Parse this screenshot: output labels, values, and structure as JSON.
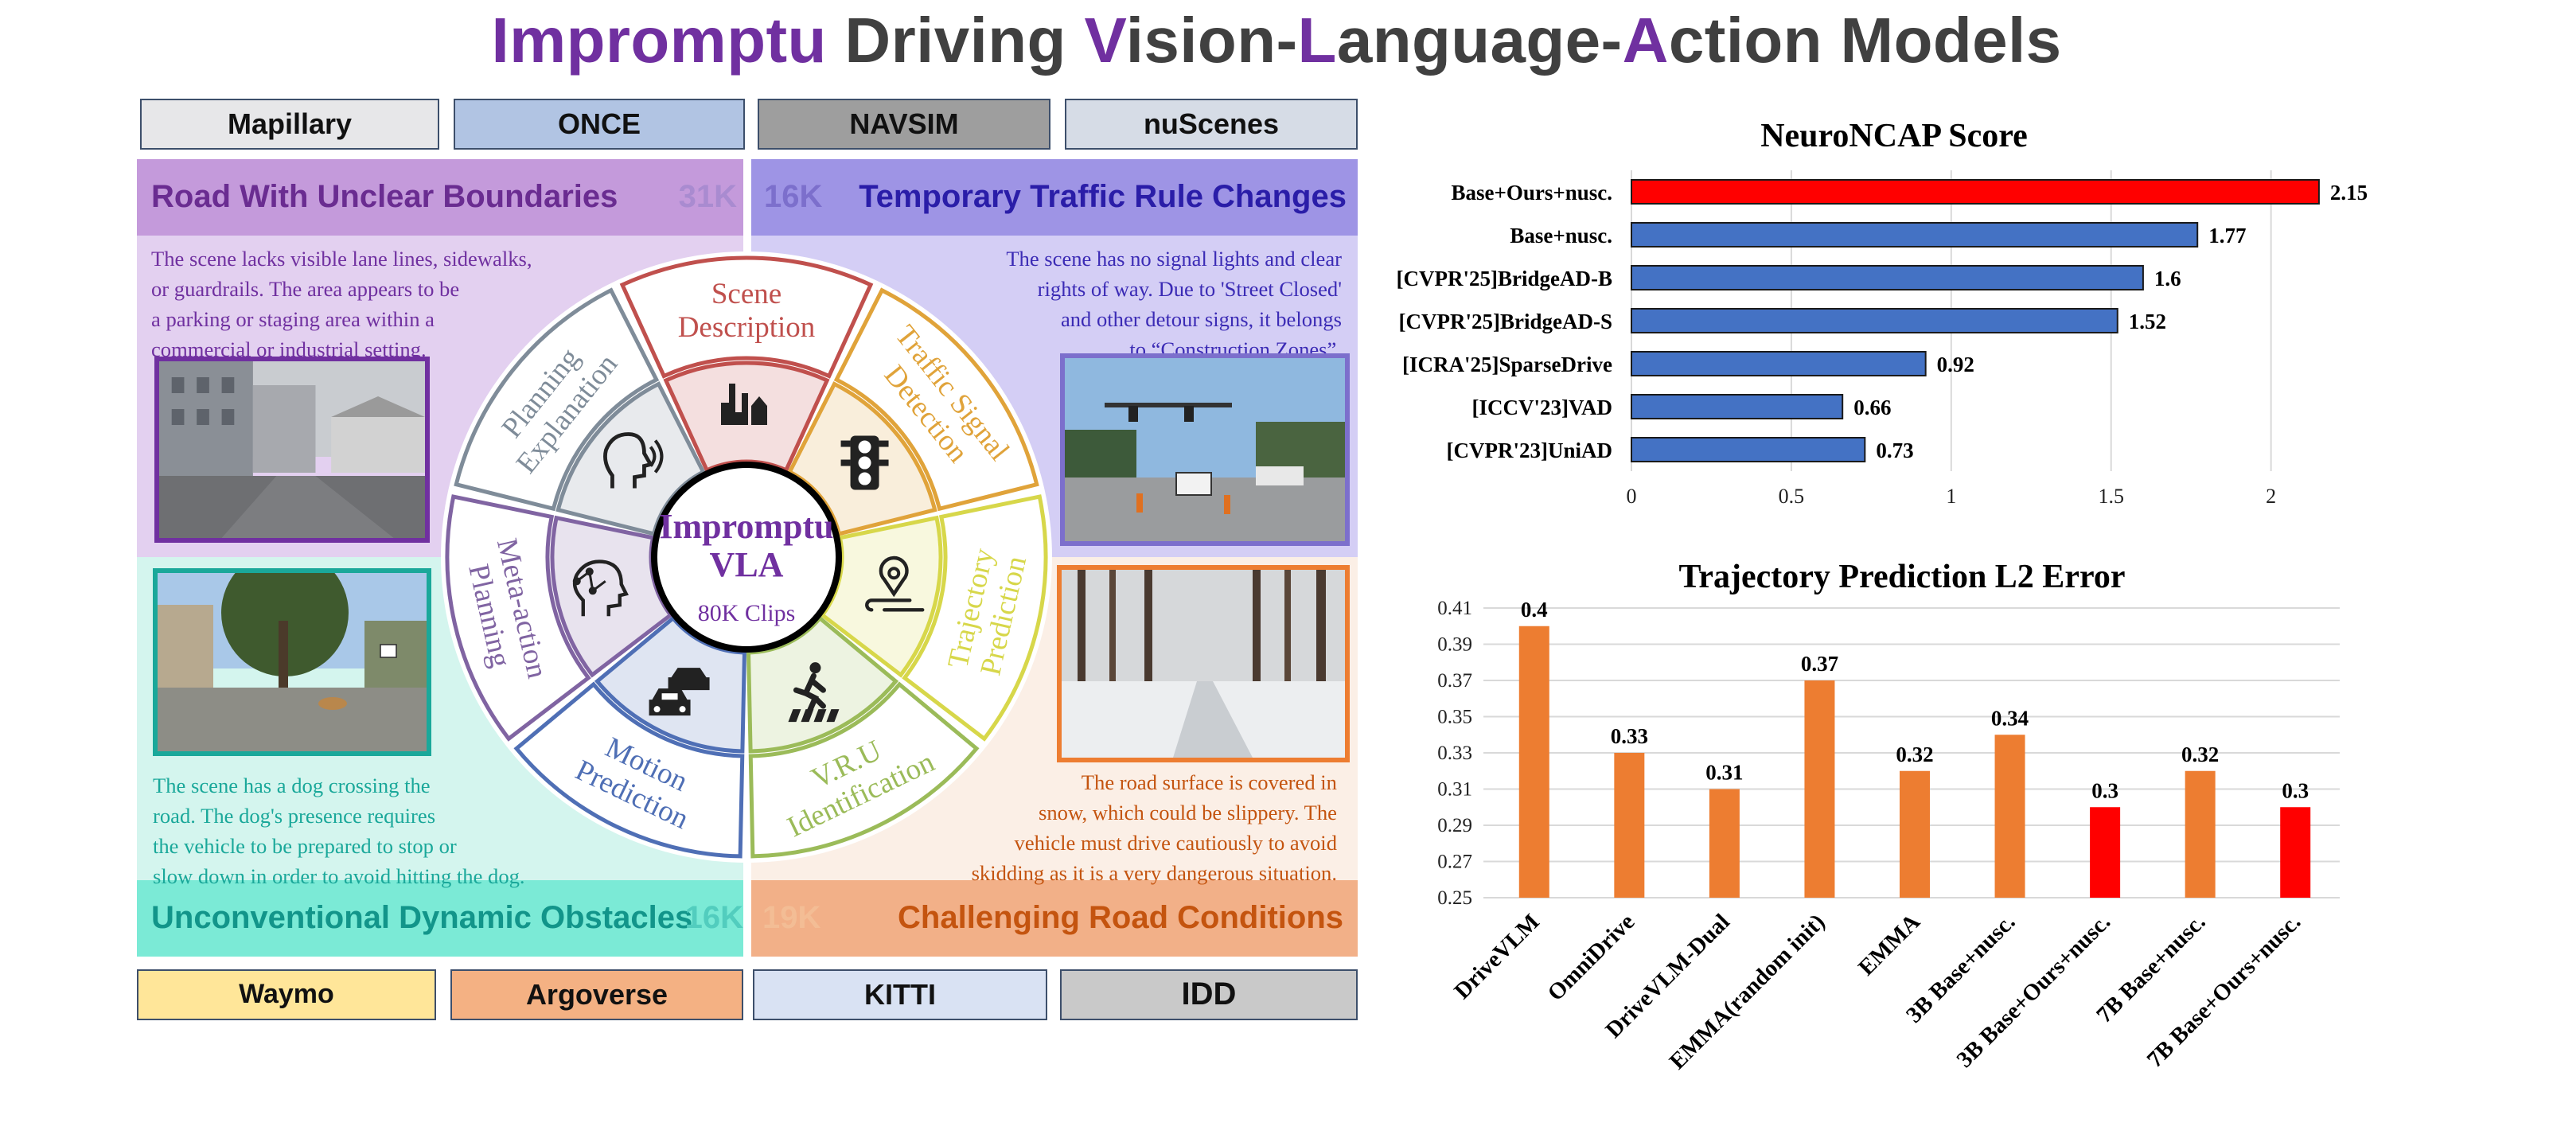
{
  "title": {
    "parts": [
      "Impromptu",
      " Driving ",
      "V",
      "ision-",
      "L",
      "anguage-",
      "A",
      "ction Models"
    ]
  },
  "datasets_top": [
    "Mapillary",
    "ONCE",
    "NAVSIM",
    "nuScenes"
  ],
  "datasets_bottom": [
    "Waymo",
    "Argoverse",
    "KITTI",
    "IDD"
  ],
  "quadrants": {
    "top_left": {
      "title": "Road With Unclear Boundaries",
      "count": "31K",
      "desc": [
        "The scene lacks visible lane lines, sidewalks,",
        "or guardrails. The area appears to be",
        "a parking or staging area within a",
        "commercial or industrial setting."
      ]
    },
    "top_right": {
      "title": "Temporary Traffic Rule Changes",
      "count": "16K",
      "desc": [
        "The scene has no signal lights and clear",
        "rights  of way. Due to 'Street Closed'",
        "and other detour signs, it belongs",
        "to “Construction Zones”."
      ]
    },
    "bottom_left": {
      "title": "Unconventional Dynamic Obstacles",
      "count": "16K",
      "desc": [
        "The scene has a dog crossing the",
        "road. The dog's presence requires",
        "the vehicle to be prepared to stop or",
        "slow down in order to avoid hitting the dog."
      ]
    },
    "bottom_right": {
      "title": "Challenging Road Conditions",
      "count": "19K",
      "desc": [
        "The road surface is covered in",
        "snow, which could be slippery. The",
        "vehicle must drive cautiously to avoid",
        "skidding as it is a very dangerous situation."
      ]
    }
  },
  "wheel": {
    "center_title": [
      "Impromptu",
      "VLA"
    ],
    "center_sub": "80K Clips",
    "segments": [
      {
        "label": [
          "Scene",
          "Description"
        ],
        "color": "#C0504D",
        "icon": "city-skyline-icon"
      },
      {
        "label": [
          "Traffic Signal",
          "Detection"
        ],
        "color": "#E0A33A",
        "icon": "traffic-light-icon"
      },
      {
        "label": [
          "Trajectory",
          "Prediction"
        ],
        "color": "#D7D74A",
        "icon": "map-pin-route-icon"
      },
      {
        "label": [
          "V.R.U",
          "Identification"
        ],
        "color": "#9BBB59",
        "icon": "pedestrian-crossing-icon"
      },
      {
        "label": [
          "Motion",
          "Prediction"
        ],
        "color": "#4F6FB5",
        "icon": "cars-icon"
      },
      {
        "label": [
          "Meta-action",
          "Planning"
        ],
        "color": "#8064A2",
        "icon": "robot-head-icon"
      },
      {
        "label": [
          "Planning",
          "Explanation"
        ],
        "color": "#7F8C99",
        "icon": "speaking-head-icon"
      }
    ]
  },
  "chart_data": [
    {
      "type": "bar",
      "orientation": "horizontal",
      "title": "NeuroNCAP Score",
      "categories": [
        "Base+Ours+nusc.",
        "Base+nusc.",
        "[CVPR'25]BridgeAD-B",
        "[CVPR'25]BridgeAD-S",
        "[ICRA'25]SparseDrive",
        "[ICCV'23]VAD",
        "[CVPR'23]UniAD"
      ],
      "values": [
        2.15,
        1.77,
        1.6,
        1.52,
        0.92,
        0.66,
        0.73
      ],
      "value_labels": [
        "2.15",
        "1.77",
        "1.6",
        "1.52",
        "0.92",
        "0.66",
        "0.73"
      ],
      "highlight_colors": [
        "#FF0000",
        "#4472C4",
        "#4472C4",
        "#4472C4",
        "#4472C4",
        "#4472C4",
        "#4472C4"
      ],
      "xlim": [
        0,
        2.2
      ],
      "xticks": [
        "0",
        "0.5",
        "1",
        "1.5",
        "2"
      ],
      "grid": true
    },
    {
      "type": "bar",
      "title": "Trajectory Prediction L2 Error",
      "categories": [
        "DriveVLM",
        "OmniDrive",
        "DriveVLM-Dual",
        "EMMA(random init)",
        "EMMA",
        "3B Base+nusc.",
        "3B Base+Ours+nusc.",
        "7B Base+nusc.",
        "7B Base+Ours+nusc."
      ],
      "values": [
        0.4,
        0.33,
        0.31,
        0.37,
        0.32,
        0.34,
        0.3,
        0.32,
        0.3
      ],
      "value_labels": [
        "0.4",
        "0.33",
        "0.31",
        "0.37",
        "0.32",
        "0.34",
        "0.3",
        "0.32",
        "0.3"
      ],
      "highlight_colors": [
        "#ED7D31",
        "#ED7D31",
        "#ED7D31",
        "#ED7D31",
        "#ED7D31",
        "#ED7D31",
        "#FF0000",
        "#ED7D31",
        "#FF0000"
      ],
      "ylim": [
        0.25,
        0.41
      ],
      "yticks": [
        "0.41",
        "0.39",
        "0.37",
        "0.35",
        "0.33",
        "0.31",
        "0.29",
        "0.27",
        "0.25"
      ],
      "grid": true
    }
  ]
}
